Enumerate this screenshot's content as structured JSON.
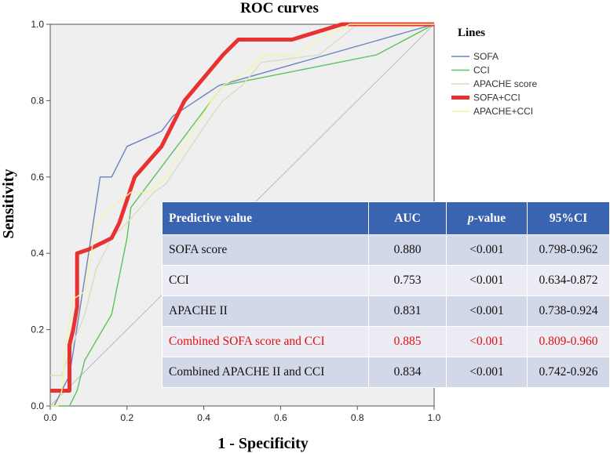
{
  "chart_data": {
    "type": "line",
    "title": "ROC curves",
    "xlabel": "1 -  Specificity",
    "ylabel": "Sensitivity",
    "xlim": [
      0,
      1.0
    ],
    "ylim": [
      0,
      1.0
    ],
    "xticks": [
      "0.0",
      "0.2",
      "0.4",
      "0.6",
      "0.8",
      "1.0"
    ],
    "yticks": [
      "0.0",
      "0.2",
      "0.4",
      "0.6",
      "0.8",
      "1.0"
    ],
    "grid": false,
    "plot_background": "#efefef",
    "legend": {
      "title": "Lines",
      "placement": "right"
    },
    "series": [
      {
        "name": "SOFA",
        "color": "#6b82c0",
        "points": [
          [
            0,
            0
          ],
          [
            0.01,
            0
          ],
          [
            0.05,
            0.08
          ],
          [
            0.1,
            0.4
          ],
          [
            0.13,
            0.6
          ],
          [
            0.16,
            0.6
          ],
          [
            0.2,
            0.68
          ],
          [
            0.29,
            0.72
          ],
          [
            0.32,
            0.76
          ],
          [
            0.44,
            0.84
          ],
          [
            0.86,
            0.96
          ],
          [
            1.0,
            1.0
          ]
        ]
      },
      {
        "name": "CCI",
        "color": "#5cc25c",
        "points": [
          [
            0,
            0
          ],
          [
            0.05,
            0
          ],
          [
            0.07,
            0.04
          ],
          [
            0.09,
            0.12
          ],
          [
            0.16,
            0.24
          ],
          [
            0.2,
            0.44
          ],
          [
            0.21,
            0.52
          ],
          [
            0.33,
            0.68
          ],
          [
            0.45,
            0.84
          ],
          [
            0.5,
            0.85
          ],
          [
            0.85,
            0.92
          ],
          [
            1.0,
            1.0
          ]
        ]
      },
      {
        "name": "APACHE score",
        "color": "#dcdcc0",
        "points": [
          [
            0,
            0.08
          ],
          [
            0.03,
            0.08
          ],
          [
            0.05,
            0.14
          ],
          [
            0.09,
            0.24
          ],
          [
            0.12,
            0.36
          ],
          [
            0.16,
            0.44
          ],
          [
            0.2,
            0.48
          ],
          [
            0.27,
            0.56
          ],
          [
            0.3,
            0.58
          ],
          [
            0.42,
            0.76
          ],
          [
            0.45,
            0.8
          ],
          [
            0.5,
            0.84
          ],
          [
            0.55,
            0.9
          ],
          [
            0.7,
            0.92
          ],
          [
            0.8,
            1.0
          ],
          [
            1.0,
            1.0
          ]
        ]
      },
      {
        "name": "SOFA+CCI",
        "color": "#e83232",
        "points": [
          [
            0,
            0.04
          ],
          [
            0.05,
            0.04
          ],
          [
            0.05,
            0.16
          ],
          [
            0.06,
            0.2
          ],
          [
            0.07,
            0.26
          ],
          [
            0.07,
            0.4
          ],
          [
            0.1,
            0.41
          ],
          [
            0.14,
            0.43
          ],
          [
            0.16,
            0.44
          ],
          [
            0.18,
            0.48
          ],
          [
            0.22,
            0.6
          ],
          [
            0.29,
            0.68
          ],
          [
            0.35,
            0.8
          ],
          [
            0.45,
            0.92
          ],
          [
            0.49,
            0.96
          ],
          [
            0.63,
            0.96
          ],
          [
            0.76,
            1.0
          ],
          [
            1.0,
            1.0
          ]
        ]
      },
      {
        "name": "APACHE+CCI",
        "color": "#f4f4a0",
        "points": [
          [
            0,
            0
          ],
          [
            0.02,
            0
          ],
          [
            0.03,
            0.04
          ],
          [
            0.04,
            0.16
          ],
          [
            0.06,
            0.28
          ],
          [
            0.09,
            0.3
          ],
          [
            0.12,
            0.48
          ],
          [
            0.16,
            0.52
          ],
          [
            0.21,
            0.56
          ],
          [
            0.26,
            0.56
          ],
          [
            0.3,
            0.6
          ],
          [
            0.42,
            0.8
          ],
          [
            0.45,
            0.84
          ],
          [
            0.52,
            0.88
          ],
          [
            0.55,
            0.92
          ],
          [
            0.64,
            0.92
          ],
          [
            0.7,
            0.96
          ],
          [
            0.78,
            1.0
          ],
          [
            1.0,
            1.0
          ]
        ]
      }
    ]
  },
  "table": {
    "headers": [
      "Predictive value",
      "AUC",
      "p-value",
      "95%CI"
    ],
    "rows": [
      {
        "label": "SOFA score",
        "auc": "0.880",
        "p": "<0.001",
        "ci": "0.798-0.962"
      },
      {
        "label": "CCI",
        "auc": "0.753",
        "p": "<0.001",
        "ci": "0.634-0.872"
      },
      {
        "label": "APACHE II",
        "auc": "0.831",
        "p": "<0.001",
        "ci": "0.738-0.924"
      },
      {
        "label": "Combined SOFA score and CCI",
        "auc": "0.885",
        "p": "<0.001",
        "ci": "0.809-0.960"
      },
      {
        "label": "Combined APACHE II and CCI",
        "auc": "0.834",
        "p": "<0.001",
        "ci": "0.742-0.926"
      }
    ],
    "highlight_row": 3,
    "highlight_color": "#e01010",
    "header_color": "#3a64b0"
  }
}
